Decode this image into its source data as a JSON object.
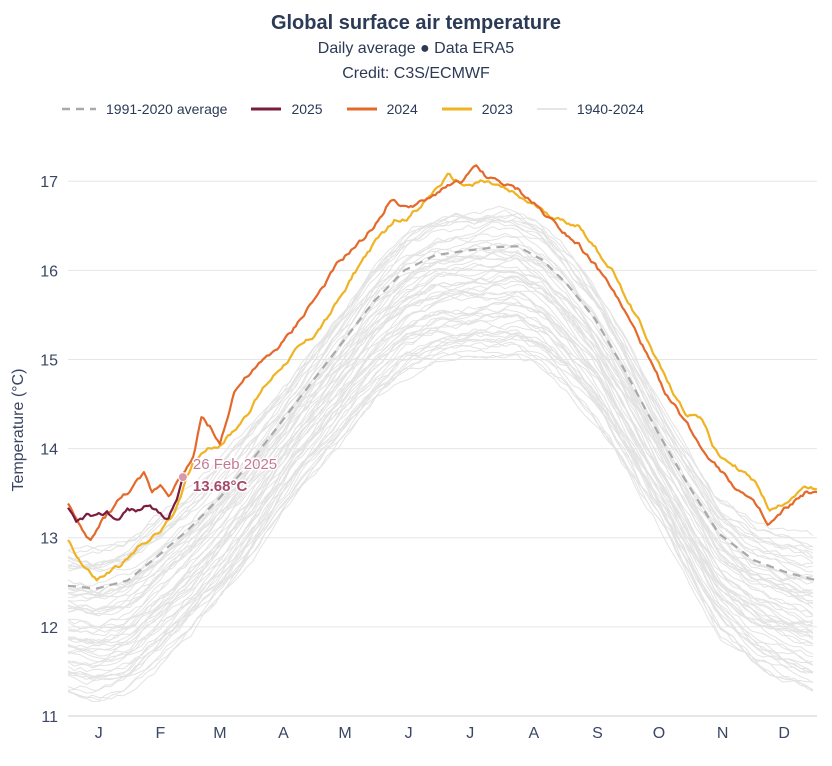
{
  "header": {
    "title": "Global surface air temperature",
    "subtitle": "Daily average ● Data ERA5",
    "credit": "Credit: C3S/ECMWF"
  },
  "chart_data": {
    "type": "line",
    "ylabel": "Temperature (°C)",
    "xlabel": "",
    "ylim": [
      11,
      17.35
    ],
    "xlim": [
      1,
      366
    ],
    "yticks": [
      "11",
      "12",
      "13",
      "14",
      "15",
      "16",
      "17"
    ],
    "xticks": [
      "J",
      "F",
      "M",
      "A",
      "M",
      "J",
      "J",
      "A",
      "S",
      "O",
      "N",
      "D"
    ],
    "x_unit": "day of year",
    "grid": "horizontal",
    "legend": {
      "position": "top-left",
      "entries": [
        "1991-2020 average",
        "2025",
        "2024",
        "2023",
        "1940-2024"
      ]
    },
    "annotation": {
      "date": "26 Feb 2025",
      "value": "13.68°C",
      "x": 57,
      "y": 13.68
    },
    "series": [
      {
        "name": "1991-2020 average",
        "color": "#a9a9a9",
        "style": "dashed",
        "points": [
          [
            1,
            12.46
          ],
          [
            15,
            12.43
          ],
          [
            30,
            12.52
          ],
          [
            45,
            12.8
          ],
          [
            60,
            13.1
          ],
          [
            75,
            13.45
          ],
          [
            90,
            13.85
          ],
          [
            105,
            14.3
          ],
          [
            120,
            14.75
          ],
          [
            135,
            15.2
          ],
          [
            150,
            15.65
          ],
          [
            165,
            16.0
          ],
          [
            180,
            16.17
          ],
          [
            195,
            16.22
          ],
          [
            210,
            16.26
          ],
          [
            220,
            16.27
          ],
          [
            232,
            16.12
          ],
          [
            244,
            15.85
          ],
          [
            258,
            15.45
          ],
          [
            273,
            14.85
          ],
          [
            288,
            14.2
          ],
          [
            303,
            13.6
          ],
          [
            318,
            13.05
          ],
          [
            335,
            12.75
          ],
          [
            350,
            12.62
          ],
          [
            366,
            12.52
          ]
        ]
      },
      {
        "name": "2025",
        "color": "#7b1c3e",
        "style": "solid",
        "points": [
          [
            1,
            13.32
          ],
          [
            5,
            13.15
          ],
          [
            10,
            13.25
          ],
          [
            15,
            13.22
          ],
          [
            20,
            13.28
          ],
          [
            25,
            13.2
          ],
          [
            30,
            13.32
          ],
          [
            35,
            13.3
          ],
          [
            40,
            13.38
          ],
          [
            45,
            13.28
          ],
          [
            50,
            13.22
          ],
          [
            53,
            13.38
          ],
          [
            55,
            13.5
          ],
          [
            57,
            13.68
          ]
        ]
      },
      {
        "name": "2024",
        "color": "#e4692b",
        "style": "solid",
        "points": [
          [
            1,
            13.4
          ],
          [
            8,
            13.05
          ],
          [
            12,
            12.95
          ],
          [
            18,
            13.2
          ],
          [
            25,
            13.4
          ],
          [
            32,
            13.55
          ],
          [
            38,
            13.7
          ],
          [
            42,
            13.5
          ],
          [
            46,
            13.6
          ],
          [
            50,
            13.5
          ],
          [
            55,
            13.65
          ],
          [
            62,
            13.9
          ],
          [
            66,
            14.35
          ],
          [
            70,
            14.25
          ],
          [
            75,
            14.05
          ],
          [
            82,
            14.65
          ],
          [
            88,
            14.8
          ],
          [
            95,
            14.95
          ],
          [
            102,
            15.1
          ],
          [
            110,
            15.3
          ],
          [
            117,
            15.55
          ],
          [
            125,
            15.8
          ],
          [
            132,
            16.05
          ],
          [
            138,
            16.2
          ],
          [
            145,
            16.35
          ],
          [
            152,
            16.55
          ],
          [
            158,
            16.8
          ],
          [
            165,
            16.7
          ],
          [
            172,
            16.75
          ],
          [
            178,
            16.8
          ],
          [
            185,
            16.95
          ],
          [
            193,
            17.0
          ],
          [
            200,
            17.15
          ],
          [
            205,
            17.05
          ],
          [
            210,
            17.0
          ],
          [
            215,
            16.95
          ],
          [
            220,
            16.9
          ],
          [
            228,
            16.75
          ],
          [
            235,
            16.6
          ],
          [
            242,
            16.45
          ],
          [
            250,
            16.3
          ],
          [
            258,
            16.05
          ],
          [
            266,
            15.8
          ],
          [
            273,
            15.5
          ],
          [
            280,
            15.2
          ],
          [
            287,
            14.85
          ],
          [
            294,
            14.55
          ],
          [
            302,
            14.3
          ],
          [
            310,
            14.0
          ],
          [
            318,
            13.8
          ],
          [
            325,
            13.6
          ],
          [
            332,
            13.45
          ],
          [
            338,
            13.3
          ],
          [
            342,
            13.12
          ],
          [
            346,
            13.2
          ],
          [
            350,
            13.3
          ],
          [
            355,
            13.4
          ],
          [
            360,
            13.5
          ],
          [
            366,
            13.48
          ]
        ]
      },
      {
        "name": "2023",
        "color": "#f0b323",
        "style": "solid",
        "points": [
          [
            1,
            12.98
          ],
          [
            8,
            12.7
          ],
          [
            15,
            12.52
          ],
          [
            22,
            12.62
          ],
          [
            30,
            12.75
          ],
          [
            38,
            12.95
          ],
          [
            45,
            13.05
          ],
          [
            52,
            13.25
          ],
          [
            57,
            13.55
          ],
          [
            62,
            13.85
          ],
          [
            68,
            14.0
          ],
          [
            75,
            14.05
          ],
          [
            82,
            14.2
          ],
          [
            90,
            14.45
          ],
          [
            97,
            14.7
          ],
          [
            104,
            14.9
          ],
          [
            112,
            15.1
          ],
          [
            120,
            15.25
          ],
          [
            127,
            15.45
          ],
          [
            134,
            15.7
          ],
          [
            140,
            15.95
          ],
          [
            147,
            16.2
          ],
          [
            154,
            16.4
          ],
          [
            160,
            16.55
          ],
          [
            167,
            16.6
          ],
          [
            174,
            16.75
          ],
          [
            180,
            16.9
          ],
          [
            186,
            17.05
          ],
          [
            190,
            17.0
          ],
          [
            195,
            16.95
          ],
          [
            202,
            17.0
          ],
          [
            210,
            16.95
          ],
          [
            218,
            16.85
          ],
          [
            226,
            16.75
          ],
          [
            234,
            16.65
          ],
          [
            242,
            16.55
          ],
          [
            250,
            16.5
          ],
          [
            258,
            16.25
          ],
          [
            266,
            16.0
          ],
          [
            273,
            15.7
          ],
          [
            280,
            15.4
          ],
          [
            287,
            15.05
          ],
          [
            294,
            14.7
          ],
          [
            302,
            14.4
          ],
          [
            310,
            14.35
          ],
          [
            315,
            14.05
          ],
          [
            320,
            13.9
          ],
          [
            326,
            13.8
          ],
          [
            332,
            13.7
          ],
          [
            338,
            13.55
          ],
          [
            343,
            13.3
          ],
          [
            348,
            13.35
          ],
          [
            353,
            13.45
          ],
          [
            358,
            13.55
          ],
          [
            363,
            13.55
          ],
          [
            366,
            13.5
          ]
        ]
      }
    ]
  }
}
